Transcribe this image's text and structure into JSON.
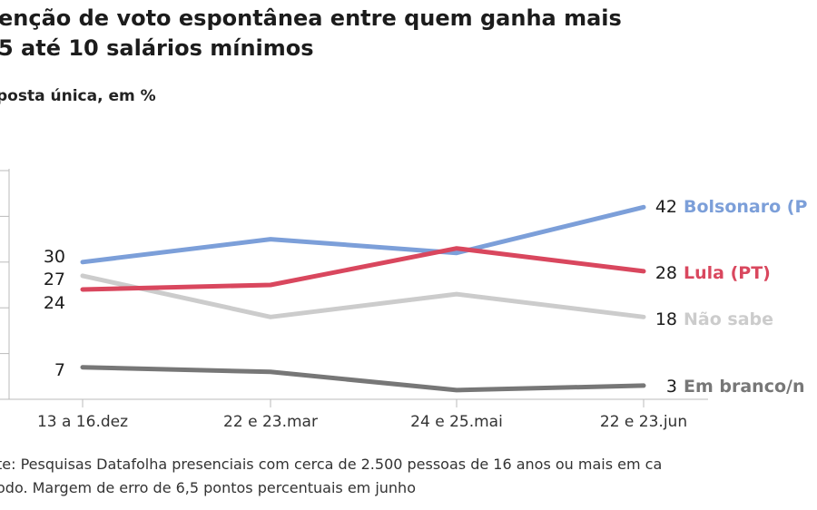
{
  "chart_data": {
    "type": "line",
    "title_lines": [
      "enção de voto espontânea entre quem ganha mais",
      "5 até 10 salários mínimos"
    ],
    "subtitle": "posta única, em %",
    "categories": [
      "13 a 16.dez",
      "22 e 23.mar",
      "24 e 25.mai",
      "22 e 23.jun"
    ],
    "ylim": [
      0,
      50
    ],
    "grid": false,
    "series": [
      {
        "name": "Bolsonaro (P",
        "color": "#7c9fd9",
        "values": [
          30,
          35,
          32,
          42
        ],
        "first_label": "30",
        "last_label": "42"
      },
      {
        "name": "Lula (PT)",
        "color": "#d9475e",
        "values": [
          24,
          25,
          33,
          28
        ],
        "first_label": "24",
        "last_label": "28"
      },
      {
        "name": "Não sabe",
        "color": "#cccccc",
        "values": [
          27,
          18,
          23,
          18
        ],
        "first_label": "27",
        "last_label": "18"
      },
      {
        "name": "Em branco/n",
        "color": "#777777",
        "values": [
          7,
          6,
          2,
          3
        ],
        "first_label": "7",
        "last_label": "3"
      }
    ]
  },
  "source_lines": [
    "te: Pesquisas Datafolha presenciais com cerca de 2.500 pessoas de 16 anos ou mais em ca",
    "odo. Margem de erro de 6,5 pontos percentuais em junho"
  ]
}
